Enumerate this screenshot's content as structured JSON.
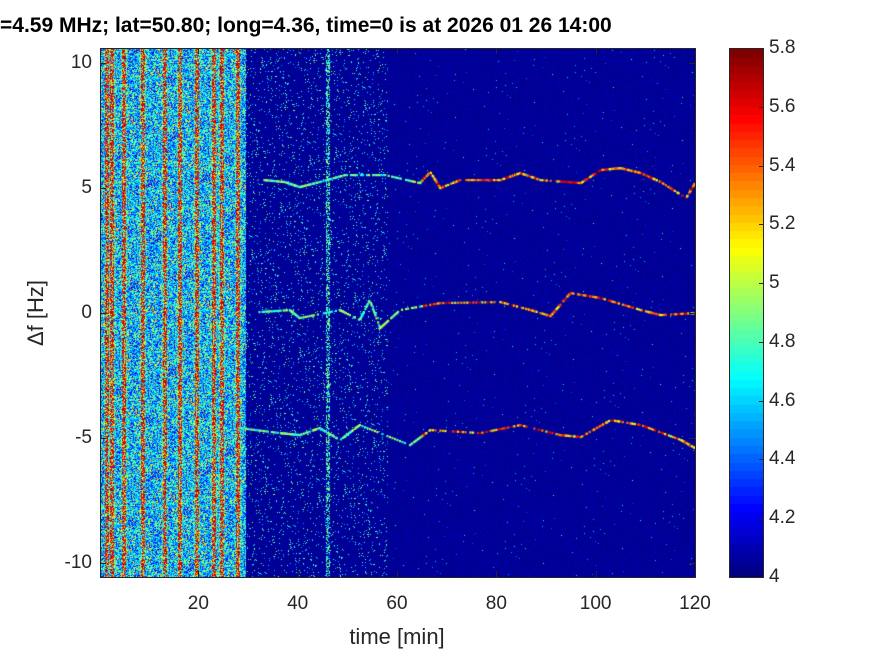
{
  "chart_data": {
    "type": "heatmap",
    "title": "=4.59 MHz;  lat=50.80; long=4.36, time=0 is at 2026 01 26 14:00",
    "xlabel": "time [min]",
    "ylabel": "Δf [Hz]",
    "xlim": [
      0.2,
      120
    ],
    "ylim": [
      -10.56,
      10.6
    ],
    "xticks": [
      20,
      40,
      60,
      80,
      100,
      120
    ],
    "xtick_labels": [
      "20",
      "40",
      "60",
      "80",
      "100",
      "120"
    ],
    "yticks": [
      -10,
      -5,
      0,
      5,
      10
    ],
    "ytick_labels": [
      "-10",
      "-5",
      "0",
      "5",
      "10"
    ],
    "colorbar": {
      "range": [
        4,
        5.8
      ],
      "colormap": "jet",
      "ticks": [
        4,
        4.2,
        4.4,
        4.6,
        4.8,
        5,
        5.2,
        5.4,
        5.6,
        5.8
      ],
      "tick_labels": [
        "4",
        "4.2",
        "4.4",
        "4.6",
        "4.8",
        "5",
        "5.2",
        "5.4",
        "5.6",
        "5.8"
      ]
    },
    "broadband_noise_until_min": 29,
    "sparse_noise_until_min": 58,
    "strong_stripes_min": [
      1.6,
      2.6,
      5,
      8.7,
      13.1,
      16.2,
      19.6,
      23,
      24.6,
      27.9
    ],
    "isolated_stripe_min": 46,
    "traces": [
      {
        "name": "upper",
        "points": [
          [
            33.3,
            5.32
          ],
          [
            37.4,
            5.24
          ],
          [
            40.4,
            5.04
          ],
          [
            44.4,
            5.24
          ],
          [
            49.5,
            5.52
          ],
          [
            57.6,
            5.52
          ],
          [
            64.6,
            5.2
          ],
          [
            66.7,
            5.64
          ],
          [
            68.7,
            5.0
          ],
          [
            72.7,
            5.32
          ],
          [
            80.8,
            5.32
          ],
          [
            84.8,
            5.6
          ],
          [
            88.9,
            5.32
          ],
          [
            97,
            5.2
          ],
          [
            101,
            5.72
          ],
          [
            105,
            5.8
          ],
          [
            109.1,
            5.6
          ],
          [
            113.1,
            5.24
          ],
          [
            118.2,
            4.6
          ],
          [
            120,
            5.2
          ]
        ]
      },
      {
        "name": "middle",
        "points": [
          [
            32.3,
            0.04
          ],
          [
            38.4,
            0.12
          ],
          [
            40.4,
            -0.2
          ],
          [
            48.5,
            0.12
          ],
          [
            52.5,
            -0.28
          ],
          [
            54.5,
            0.52
          ],
          [
            56.6,
            -0.6
          ],
          [
            60.6,
            0.12
          ],
          [
            68.7,
            0.4
          ],
          [
            80.8,
            0.44
          ],
          [
            86.9,
            0.12
          ],
          [
            90.9,
            -0.12
          ],
          [
            94.9,
            0.8
          ],
          [
            101,
            0.6
          ],
          [
            109.1,
            0.12
          ],
          [
            113.1,
            -0.08
          ],
          [
            120,
            0
          ]
        ]
      },
      {
        "name": "lower",
        "points": [
          [
            28.3,
            -4.6
          ],
          [
            36.4,
            -4.8
          ],
          [
            40.4,
            -4.88
          ],
          [
            44.4,
            -4.6
          ],
          [
            48.5,
            -5.08
          ],
          [
            52.5,
            -4.48
          ],
          [
            62.6,
            -5.28
          ],
          [
            66.7,
            -4.68
          ],
          [
            76.8,
            -4.8
          ],
          [
            84.8,
            -4.48
          ],
          [
            92.9,
            -4.88
          ],
          [
            97,
            -4.96
          ],
          [
            103,
            -4.28
          ],
          [
            109.1,
            -4.48
          ],
          [
            117.2,
            -5.08
          ],
          [
            120,
            -5.4
          ]
        ]
      }
    ]
  }
}
